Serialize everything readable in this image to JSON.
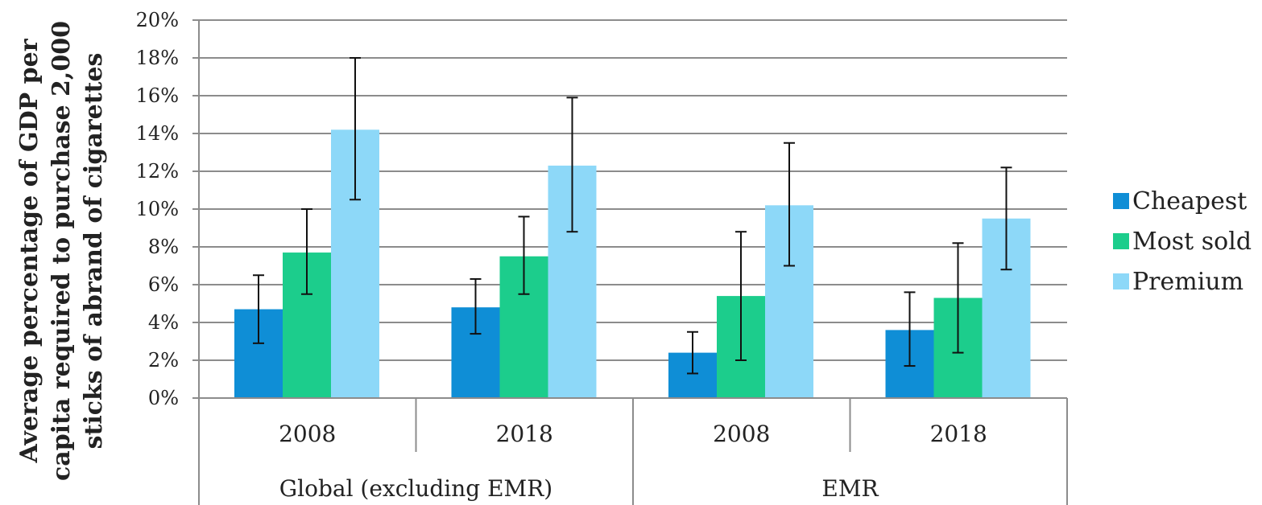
{
  "chart_data": {
    "type": "bar",
    "ylabel_lines": [
      "Average percentage of GDP per",
      "capita required to purchase 2,000",
      "sticks of abrand of cigarettes"
    ],
    "ylim": [
      0,
      20
    ],
    "ytick_step": 2,
    "ytick_labels": [
      "0%",
      "2%",
      "4%",
      "6%",
      "8%",
      "10%",
      "12%",
      "14%",
      "16%",
      "18%",
      "20%"
    ],
    "grid": true,
    "legend_position": "right",
    "groups": [
      {
        "label": "Global (excluding EMR)",
        "categories": [
          "2008",
          "2018"
        ]
      },
      {
        "label": "EMR",
        "categories": [
          "2008",
          "2018"
        ]
      }
    ],
    "categories": [
      "2008",
      "2018",
      "2008",
      "2018"
    ],
    "series": [
      {
        "name": "Cheapest",
        "color": "#0f8ed6",
        "values": [
          4.7,
          4.8,
          2.4,
          3.6
        ],
        "err_low": [
          2.9,
          3.4,
          1.3,
          1.7
        ],
        "err_high": [
          6.5,
          6.3,
          3.5,
          5.6
        ]
      },
      {
        "name": "Most sold",
        "color": "#1ccd8c",
        "values": [
          7.7,
          7.5,
          5.4,
          5.3
        ],
        "err_low": [
          5.5,
          5.5,
          2.0,
          2.4
        ],
        "err_high": [
          10.0,
          9.6,
          8.8,
          8.2
        ]
      },
      {
        "name": "Premium",
        "color": "#8dd8f8",
        "values": [
          14.2,
          12.3,
          10.2,
          9.5
        ],
        "err_low": [
          10.5,
          8.8,
          7.0,
          6.8
        ],
        "err_high": [
          18.0,
          15.9,
          13.5,
          12.2
        ]
      }
    ]
  }
}
